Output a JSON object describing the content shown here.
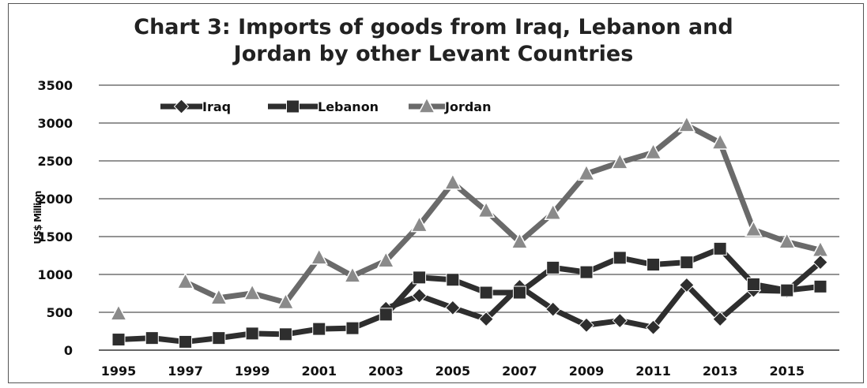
{
  "chart_data": {
    "type": "line",
    "title_lines": [
      "Chart 3: Imports of goods from Iraq, Lebanon and",
      "Jordan by other Levant Countries"
    ],
    "xlabel": "",
    "ylabel": "US$ Million",
    "x": [
      1995,
      1996,
      1997,
      1998,
      1999,
      2000,
      2001,
      2002,
      2003,
      2004,
      2005,
      2006,
      2007,
      2008,
      2009,
      2010,
      2011,
      2012,
      2013,
      2014,
      2015,
      2016
    ],
    "x_tick_labels": [
      "1995",
      "1997",
      "1999",
      "2001",
      "2003",
      "2005",
      "2007",
      "2009",
      "2011",
      "2013",
      "2015"
    ],
    "y_tick_labels": [
      "0",
      "500",
      "1000",
      "1500",
      "2000",
      "2500",
      "3000",
      "3500"
    ],
    "ylim": [
      0,
      3500
    ],
    "grid": "horizontal",
    "legend_position": "top-left",
    "series": [
      {
        "name": "Iraq",
        "marker": "diamond",
        "color": "#2e2e2e",
        "values": [
          null,
          null,
          null,
          null,
          null,
          null,
          null,
          null,
          550,
          720,
          560,
          410,
          840,
          540,
          330,
          390,
          300,
          860,
          410,
          790,
          780,
          1160
        ]
      },
      {
        "name": "Lebanon",
        "marker": "square",
        "color": "#2e2e2e",
        "values": [
          140,
          160,
          110,
          160,
          220,
          210,
          280,
          290,
          470,
          960,
          930,
          760,
          760,
          1090,
          1030,
          1220,
          1130,
          1160,
          1340,
          870,
          790,
          840
        ]
      },
      {
        "name": "Jordan",
        "marker": "triangle",
        "color": "#6a6a6a",
        "values": [
          480,
          null,
          900,
          690,
          750,
          630,
          1220,
          980,
          1180,
          1650,
          2210,
          1840,
          1430,
          1810,
          2330,
          2480,
          2610,
          2970,
          2740,
          1590,
          1430,
          1320
        ]
      }
    ]
  }
}
